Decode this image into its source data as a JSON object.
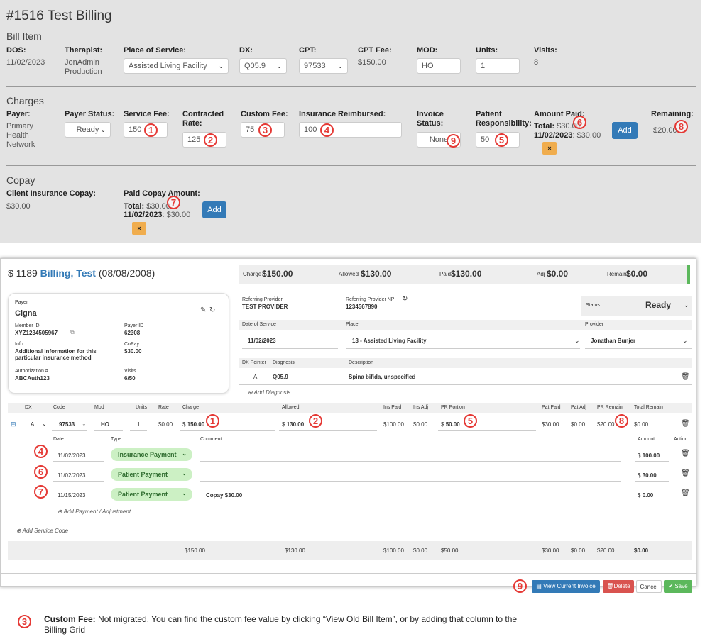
{
  "top": {
    "title": "#1516 Test Billing",
    "bill_item": {
      "heading": "Bill Item",
      "dos_label": "DOS:",
      "dos": "11/02/2023",
      "therapist_label": "Therapist:",
      "therapist_line1": "JonAdmin",
      "therapist_line2": "Production",
      "pos_label": "Place of Service:",
      "pos": "Assisted Living Facility",
      "dx_label": "DX:",
      "dx": "Q05.9",
      "cpt_label": "CPT:",
      "cpt": "97533",
      "cptfee_label": "CPT Fee:",
      "cptfee": "$150.00",
      "mod_label": "MOD:",
      "mod": "HO",
      "units_label": "Units:",
      "units": "1",
      "visits_label": "Visits:",
      "visits": "8"
    },
    "charges": {
      "heading": "Charges",
      "payer_label": "Payer:",
      "payer_l1": "Primary",
      "payer_l2": "Health",
      "payer_l3": "Network",
      "status_label": "Payer Status:",
      "status": "Ready",
      "service_fee_label": "Service Fee:",
      "service_fee": "150",
      "contracted_l1": "Contracted",
      "contracted_l2": "Rate:",
      "contracted": "125",
      "custom_fee_label": "Custom Fee:",
      "custom_fee": "75",
      "ins_reimb_label": "Insurance Reimbursed:",
      "ins_reimb": "100",
      "invoice_l1": "Invoice",
      "invoice_l2": "Status:",
      "invoice": "None",
      "patresp_l1": "Patient",
      "patresp_l2": "Responsibility:",
      "patresp": "50",
      "amtpaid_label": "Amount Paid:",
      "total_label": "Total:",
      "total_val": "$30.00",
      "date_label": "11/02/2023",
      "date_val": ": $30.00",
      "add": "Add",
      "x": "×",
      "remaining_label": "Remaining:",
      "remaining": "$20.00"
    },
    "copay": {
      "heading": "Copay",
      "cic_label": "Client Insurance Copay:",
      "cic": "$30.00",
      "paid_label": "Paid Copay Amount:",
      "total_label": "Total:",
      "total_val": "$30.00",
      "date_label": "11/02/2023",
      "date_val": ": $30.00",
      "add": "Add",
      "x": "×"
    }
  },
  "bottom": {
    "header": {
      "prefix": "$ 1189 ",
      "name": "Billing, Test",
      "dob": " (08/08/2008)"
    },
    "summary": {
      "charge_l": "Charge",
      "charge": "$150.00",
      "allowed_l": "Allowed",
      "allowed": "$130.00",
      "paid_l": "Paid",
      "paid": "$130.00",
      "adj_l": "Adj",
      "adj": "$0.00",
      "remain_l": "Remain",
      "remain": "$0.00"
    },
    "payer": {
      "label": "Payer",
      "name": "Cigna",
      "member_l": "Member ID",
      "member": "XYZ1234505967",
      "payerid_l": "Payer ID",
      "payerid": "62308",
      "info_l": "Info",
      "info1": "Additional information for this",
      "info2": "particular insurance method",
      "copay_l": "CoPay",
      "copay": "$30.00",
      "auth_l": "Authorization #",
      "auth": "ABCAuth123",
      "visits_l": "Visits",
      "visits": "6/50"
    },
    "ref": {
      "prov_l": "Referring Provider",
      "prov": "TEST PROVIDER",
      "npi_l": "Referring Provider NPI",
      "npi": "1234567890",
      "status_l": "Status",
      "status": "Ready",
      "dos_l": "Date of Service",
      "dos": "11/02/2023",
      "place_l": "Place",
      "place": "13 - Assisted Living Facility",
      "provider_l": "Provider",
      "provider": "Jonathan Bunjer"
    },
    "dx": {
      "pointer_l": "DX Pointer",
      "diag_l": "Diagnosis",
      "desc_l": "Description",
      "pointer": "A",
      "diag": "Q05.9",
      "desc": "Spina bifida, unspecified",
      "add": "Add Diagnosis"
    },
    "cols": {
      "dx": "DX",
      "code": "Code",
      "mod": "Mod",
      "units": "Units",
      "rate": "Rate",
      "charge": "Charge",
      "allowed": "Allowed",
      "inspaid": "Ins Paid",
      "insadj": "Ins Adj",
      "prportion": "PR Portion",
      "patpaid": "Pat Paid",
      "patadj": "Pat Adj",
      "prremain": "PR Remain",
      "totalremain": "Total Remain"
    },
    "row": {
      "dx": "A",
      "code": "97533",
      "mod": "HO",
      "units": "1",
      "rate": "$0.00",
      "charge_p": "$",
      "charge": "150.00",
      "allowed_p": "$",
      "allowed": "130.00",
      "inspaid": "$100.00",
      "insadj": "$0.00",
      "pr_p": "$",
      "pr": "50.00",
      "patpaid": "$30.00",
      "patadj": "$0.00",
      "prremain": "$20.00",
      "totalremain": "$0.00"
    },
    "pcols": {
      "date": "Date",
      "type": "Type",
      "comment": "Comment",
      "amount": "Amount",
      "action": "Action"
    },
    "payments": [
      {
        "date": "11/02/2023",
        "type": "Insurance Payment",
        "comment": "",
        "amount_p": "$",
        "amount": "100.00"
      },
      {
        "date": "11/02/2023",
        "type": "Patient Payment",
        "comment": "",
        "amount_p": "$",
        "amount": "30.00"
      },
      {
        "date": "11/15/2023",
        "type": "Patient Payment",
        "comment": "Copay $30.00",
        "amount_p": "$",
        "amount": "0.00"
      }
    ],
    "add_payment": "Add Payment / Adjustment",
    "add_service": "Add Service Code",
    "totals": {
      "charge": "$150.00",
      "allowed": "$130.00",
      "inspaid": "$100.00",
      "insadj": "$0.00",
      "pr": "$50.00",
      "patpaid": "$30.00",
      "patadj": "$0.00",
      "prremain": "$20.00",
      "totalremain": "$0.00"
    },
    "footer": {
      "view": "View Current Invoice",
      "delete": "Delete",
      "cancel": "Cancel",
      "save": "Save"
    }
  },
  "note": {
    "bold": "Custom Fee:",
    "text1": " Not migrated. You can find the custom fee value by clicking “View Old Bill Item”, or by adding that column to the",
    "text2": "Billing Grid"
  },
  "markers": {
    "m1": "1",
    "m2": "2",
    "m3": "3",
    "m4": "4",
    "m5": "5",
    "m6": "6",
    "m7": "7",
    "m8": "8",
    "m9": "9"
  },
  "colors": {
    "accent": "#337ab7",
    "marker": "#e53935",
    "pill": "#ccf0c4",
    "danger": "#d9534f",
    "success": "#5cb85c",
    "warn": "#f0ad4e"
  }
}
